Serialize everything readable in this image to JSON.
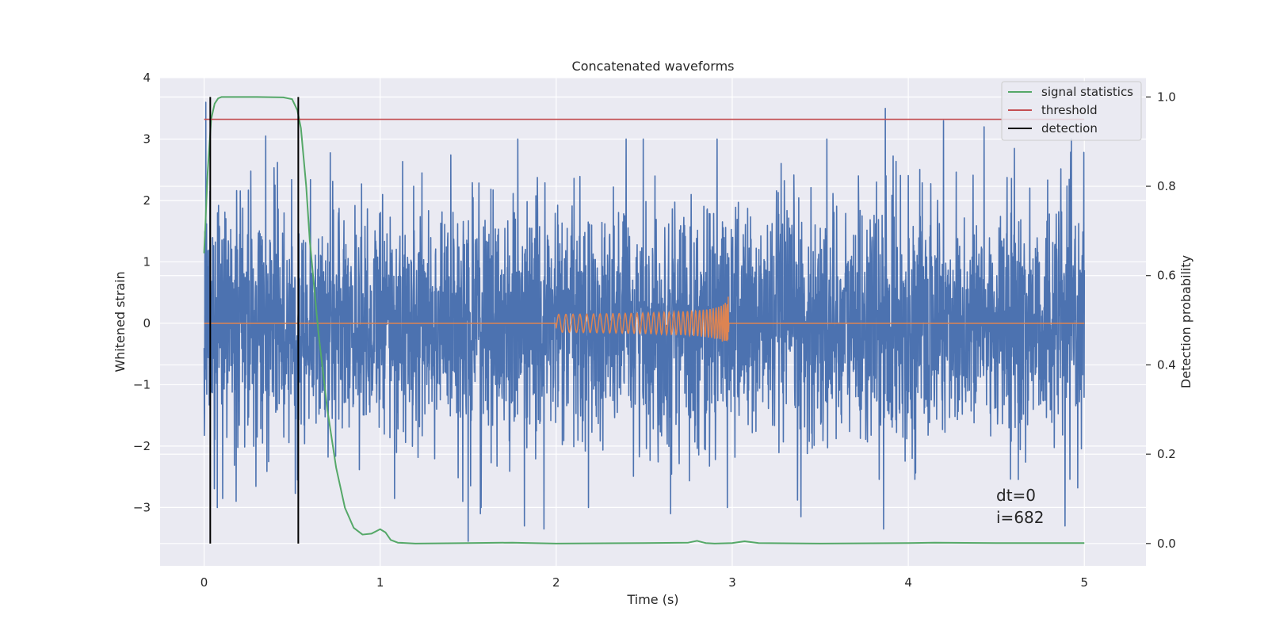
{
  "chart_data": {
    "type": "line",
    "title": "Concatenated waveforms",
    "xlabel": "Time (s)",
    "ylabel": "Whitened strain",
    "ylabel_right": "Detection probability",
    "xlim": [
      -0.25,
      5.35
    ],
    "ylim": [
      -3.95,
      4.0
    ],
    "ylim_right": [
      -0.05,
      1.0432
    ],
    "x_ticks": [
      0,
      1,
      2,
      3,
      4,
      5
    ],
    "y_ticks": [
      -3,
      -2,
      -1,
      0,
      1,
      2,
      3,
      4
    ],
    "y_ticks_right": [
      0.0,
      0.2,
      0.4,
      0.6,
      0.8,
      1.0
    ],
    "grid": true,
    "legend_position": "top-right",
    "colors": {
      "strain": "#4c72b0",
      "injected_waveform": "#dd8452",
      "signal_statistics": "#55a868",
      "threshold": "#c44e52",
      "detection": "#000000",
      "background": "#eaeaf2"
    },
    "series": [
      {
        "key": "strain",
        "axis": "left",
        "duration": [
          0,
          5
        ],
        "envelope_typical": 2.3,
        "peaks": [
          {
            "x": 0.01,
            "y": 3.6
          },
          {
            "x": 0.35,
            "y": 3.05
          },
          {
            "x": 0.53,
            "y": -2.55
          },
          {
            "x": 1.5,
            "y": -3.55
          },
          {
            "x": 1.47,
            "y": -2.9
          },
          {
            "x": 1.57,
            "y": -3.1
          },
          {
            "x": 1.82,
            "y": -3.3
          },
          {
            "x": 1.93,
            "y": -3.35
          },
          {
            "x": 2.65,
            "y": -3.1
          },
          {
            "x": 3.39,
            "y": -3.15
          },
          {
            "x": 3.86,
            "y": -3.35
          },
          {
            "x": 3.87,
            "y": 3.5
          },
          {
            "x": 4.2,
            "y": 3.3
          },
          {
            "x": 4.43,
            "y": 3.2
          },
          {
            "x": 4.89,
            "y": -3.3
          }
        ]
      },
      {
        "key": "injected_waveform",
        "axis": "left",
        "chirp_start": 2.0,
        "chirp_end": 2.98,
        "peak_amplitude": 0.55
      },
      {
        "name": "signal statistics",
        "axis": "right",
        "x": [
          0.0,
          0.02,
          0.04,
          0.06,
          0.08,
          0.1,
          0.2,
          0.3,
          0.45,
          0.5,
          0.53,
          0.55,
          0.58,
          0.6,
          0.65,
          0.7,
          0.75,
          0.8,
          0.85,
          0.9,
          0.95,
          1.0,
          1.03,
          1.06,
          1.1,
          1.2,
          1.5,
          1.75,
          2.0,
          2.5,
          2.75,
          2.8,
          2.85,
          2.9,
          3.0,
          3.07,
          3.15,
          3.5,
          4.0,
          4.15,
          4.5,
          5.0
        ],
        "values": [
          0.65,
          0.83,
          0.95,
          0.985,
          0.997,
          1.0,
          1.0,
          1.0,
          0.999,
          0.995,
          0.97,
          0.93,
          0.8,
          0.68,
          0.47,
          0.3,
          0.17,
          0.08,
          0.035,
          0.02,
          0.022,
          0.032,
          0.025,
          0.008,
          0.002,
          0.0,
          0.001,
          0.002,
          0.0,
          0.001,
          0.002,
          0.006,
          0.001,
          0.0,
          0.001,
          0.005,
          0.001,
          0.0,
          0.001,
          0.002,
          0.001,
          0.001
        ]
      },
      {
        "name": "threshold",
        "axis": "right",
        "x": [
          0,
          5
        ],
        "values": [
          0.95,
          0.95
        ]
      },
      {
        "name": "detection",
        "axis": "right",
        "vlines": [
          0.035,
          0.535
        ],
        "ymin": 0,
        "ymax": 1
      }
    ],
    "annotation": {
      "lines": [
        "dt=0",
        "i=682"
      ],
      "x": 4.5,
      "y": -3.0
    }
  }
}
